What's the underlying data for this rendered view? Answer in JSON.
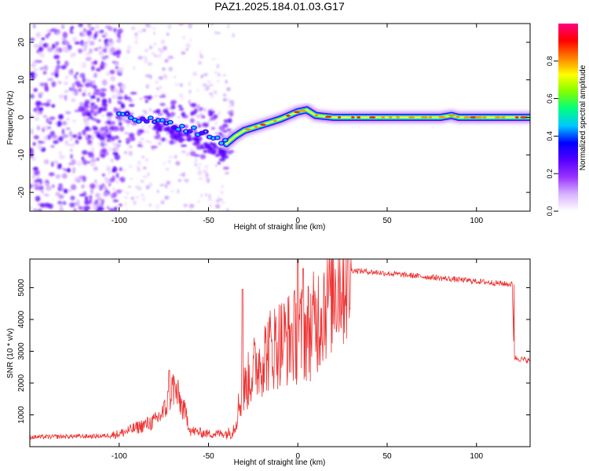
{
  "title": "PAZ1.2025.184.01.03.G17",
  "chart_data": [
    {
      "type": "heatmap",
      "xlabel": "Height of straight line (km)",
      "ylabel": "Frequency (Hz)",
      "xlim": [
        -150,
        130
      ],
      "ylim": [
        -25,
        25
      ],
      "xticks": [
        -100,
        -50,
        0,
        50,
        100
      ],
      "yticks": [
        -20,
        -10,
        0,
        10,
        20
      ],
      "colorbar": {
        "label": "Normalized spectral amplitude",
        "range": [
          0,
          1
        ],
        "ticks": [
          "0.0",
          "0.2",
          "0.4",
          "0.6",
          "0.8"
        ],
        "tick_values": [
          0.0,
          0.2,
          0.4,
          0.6,
          0.8
        ],
        "colormap": [
          "#ffffff",
          "#d9b3ff",
          "#9933ff",
          "#5500ff",
          "#0000ff",
          "#00c8ff",
          "#00ff80",
          "#80ff00",
          "#ffff00",
          "#ff8000",
          "#ff0000",
          "#ff0080"
        ]
      },
      "ridge": {
        "x": [
          -100,
          -90,
          -80,
          -70,
          -60,
          -50,
          -45,
          -40,
          -35,
          -30,
          -20,
          -10,
          0,
          5,
          10,
          20,
          40,
          60,
          80,
          86,
          90,
          100,
          110,
          120,
          130
        ],
        "y": [
          0.5,
          -0.5,
          -1.0,
          -2.0,
          -3.0,
          -4.5,
          -5.5,
          -7.0,
          -5.0,
          -3.5,
          -2.0,
          -0.5,
          1.5,
          2.0,
          0.5,
          0.0,
          0.0,
          0.0,
          0.0,
          0.5,
          0.0,
          0.0,
          0.0,
          0.0,
          0.0
        ]
      },
      "branch": {
        "x": [
          -80,
          -70,
          -60,
          -50,
          -40
        ],
        "y": [
          -2.0,
          -4.0,
          -6.0,
          -8.0,
          -10.5
        ]
      },
      "grid": false
    },
    {
      "type": "line",
      "xlabel": "Height of straight line (km)",
      "ylabel": "SNR (10 * v/v)",
      "xlim": [
        -150,
        130
      ],
      "ylim": [
        0,
        5900
      ],
      "xticks": [
        -100,
        -50,
        0,
        50,
        100
      ],
      "yticks": [
        1000,
        2000,
        3000,
        4000,
        5000
      ],
      "series": [
        {
          "color": "#ee3333",
          "x": [
            -150,
            -130,
            -110,
            -100,
            -90,
            -80,
            -75,
            -72,
            -70,
            -68,
            -65,
            -62,
            -60,
            -50,
            -40,
            -37,
            -35,
            -33,
            -30,
            -25,
            -20,
            -15,
            -10,
            -5,
            0,
            5,
            10,
            15,
            20,
            25,
            30,
            40,
            50,
            60,
            70,
            80,
            90,
            100,
            110,
            120,
            121,
            125,
            130
          ],
          "y": [
            300,
            320,
            330,
            400,
            600,
            800,
            1100,
            1500,
            1900,
            1700,
            1300,
            900,
            500,
            400,
            420,
            450,
            700,
            1300,
            1800,
            2400,
            2800,
            3100,
            3300,
            3400,
            3500,
            3600,
            3900,
            4600,
            5200,
            5450,
            5550,
            5500,
            5450,
            5400,
            5350,
            5300,
            5250,
            5200,
            5150,
            5100,
            2800,
            2750,
            2700
          ],
          "spikes": [
            {
              "x": -72,
              "y": 2400
            },
            {
              "x": -31,
              "y": 4950
            },
            {
              "x": 0,
              "y": 5900
            },
            {
              "x": 3,
              "y": 5600
            }
          ]
        }
      ],
      "grid": false
    }
  ]
}
